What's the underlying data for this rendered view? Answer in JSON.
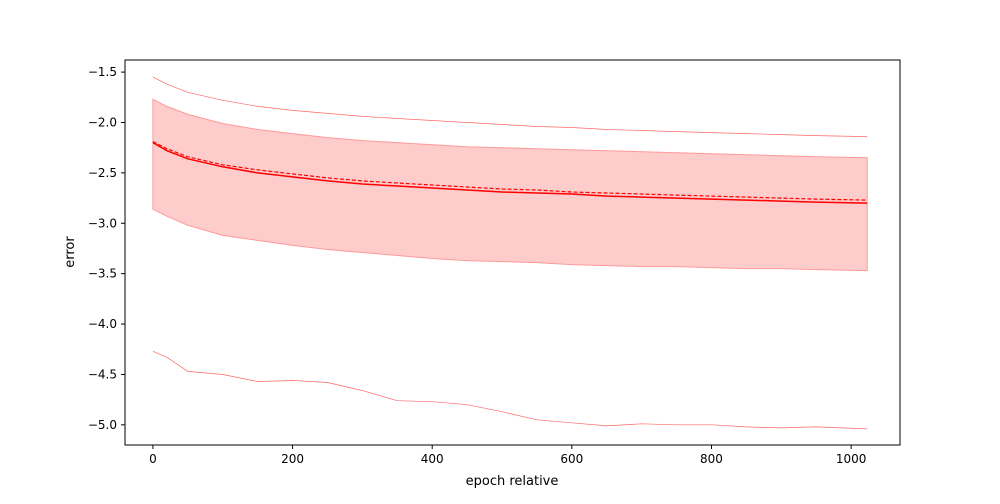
{
  "chart_data": {
    "type": "line",
    "title": "",
    "xlabel": "epoch relative",
    "ylabel": "error",
    "xlim": [
      -40,
      1070
    ],
    "ylim": [
      -5.2,
      -1.38
    ],
    "xticks": [
      0,
      200,
      400,
      600,
      800,
      1000
    ],
    "yticks": [
      -1.5,
      -2.0,
      -2.5,
      -3.0,
      -3.5,
      -4.0,
      -4.5,
      -5.0
    ],
    "xtick_labels": [
      "0",
      "200",
      "400",
      "600",
      "800",
      "1000"
    ],
    "ytick_labels": [
      "−1.5",
      "−2.0",
      "−2.5",
      "−3.0",
      "−3.5",
      "−4.0",
      "−4.5",
      "−5.0"
    ],
    "grid": false,
    "legend": "none",
    "colors": {
      "line": "#ff0000",
      "band": "#ffcccc",
      "band_edge": "#ff9999",
      "extreme": "#ff6666"
    },
    "x": [
      0,
      20,
      50,
      100,
      150,
      200,
      250,
      300,
      350,
      400,
      450,
      500,
      550,
      600,
      650,
      700,
      750,
      800,
      850,
      900,
      950,
      1023
    ],
    "series": [
      {
        "role": "mean-solid",
        "values": [
          -2.2,
          -2.28,
          -2.36,
          -2.44,
          -2.5,
          -2.54,
          -2.58,
          -2.61,
          -2.63,
          -2.65,
          -2.67,
          -2.69,
          -2.7,
          -2.71,
          -2.73,
          -2.74,
          -2.75,
          -2.76,
          -2.77,
          -2.78,
          -2.79,
          -2.8
        ]
      },
      {
        "role": "mean-dashed",
        "values": [
          -2.19,
          -2.26,
          -2.34,
          -2.42,
          -2.47,
          -2.51,
          -2.55,
          -2.58,
          -2.6,
          -2.62,
          -2.64,
          -2.66,
          -2.67,
          -2.69,
          -2.7,
          -2.71,
          -2.72,
          -2.73,
          -2.74,
          -2.75,
          -2.76,
          -2.77
        ]
      },
      {
        "role": "band-upper",
        "values": [
          -1.77,
          -1.84,
          -1.92,
          -2.01,
          -2.07,
          -2.11,
          -2.15,
          -2.18,
          -2.2,
          -2.22,
          -2.24,
          -2.25,
          -2.26,
          -2.27,
          -2.28,
          -2.29,
          -2.3,
          -2.31,
          -2.32,
          -2.33,
          -2.34,
          -2.35
        ]
      },
      {
        "role": "band-lower",
        "values": [
          -2.86,
          -2.93,
          -3.02,
          -3.12,
          -3.17,
          -3.22,
          -3.26,
          -3.29,
          -3.32,
          -3.35,
          -3.37,
          -3.38,
          -3.39,
          -3.41,
          -3.42,
          -3.43,
          -3.43,
          -3.44,
          -3.45,
          -3.45,
          -3.46,
          -3.47
        ]
      },
      {
        "role": "max",
        "values": [
          -1.55,
          -1.62,
          -1.7,
          -1.78,
          -1.84,
          -1.88,
          -1.91,
          -1.94,
          -1.96,
          -1.98,
          -2.0,
          -2.02,
          -2.04,
          -2.05,
          -2.07,
          -2.08,
          -2.09,
          -2.1,
          -2.11,
          -2.12,
          -2.13,
          -2.14
        ]
      },
      {
        "role": "min",
        "values": [
          -4.27,
          -4.33,
          -4.47,
          -4.5,
          -4.57,
          -4.56,
          -4.58,
          -4.66,
          -4.76,
          -4.77,
          -4.8,
          -4.87,
          -4.95,
          -4.98,
          -5.01,
          -4.99,
          -5.0,
          -5.0,
          -5.02,
          -5.03,
          -5.02,
          -5.04
        ]
      }
    ]
  }
}
